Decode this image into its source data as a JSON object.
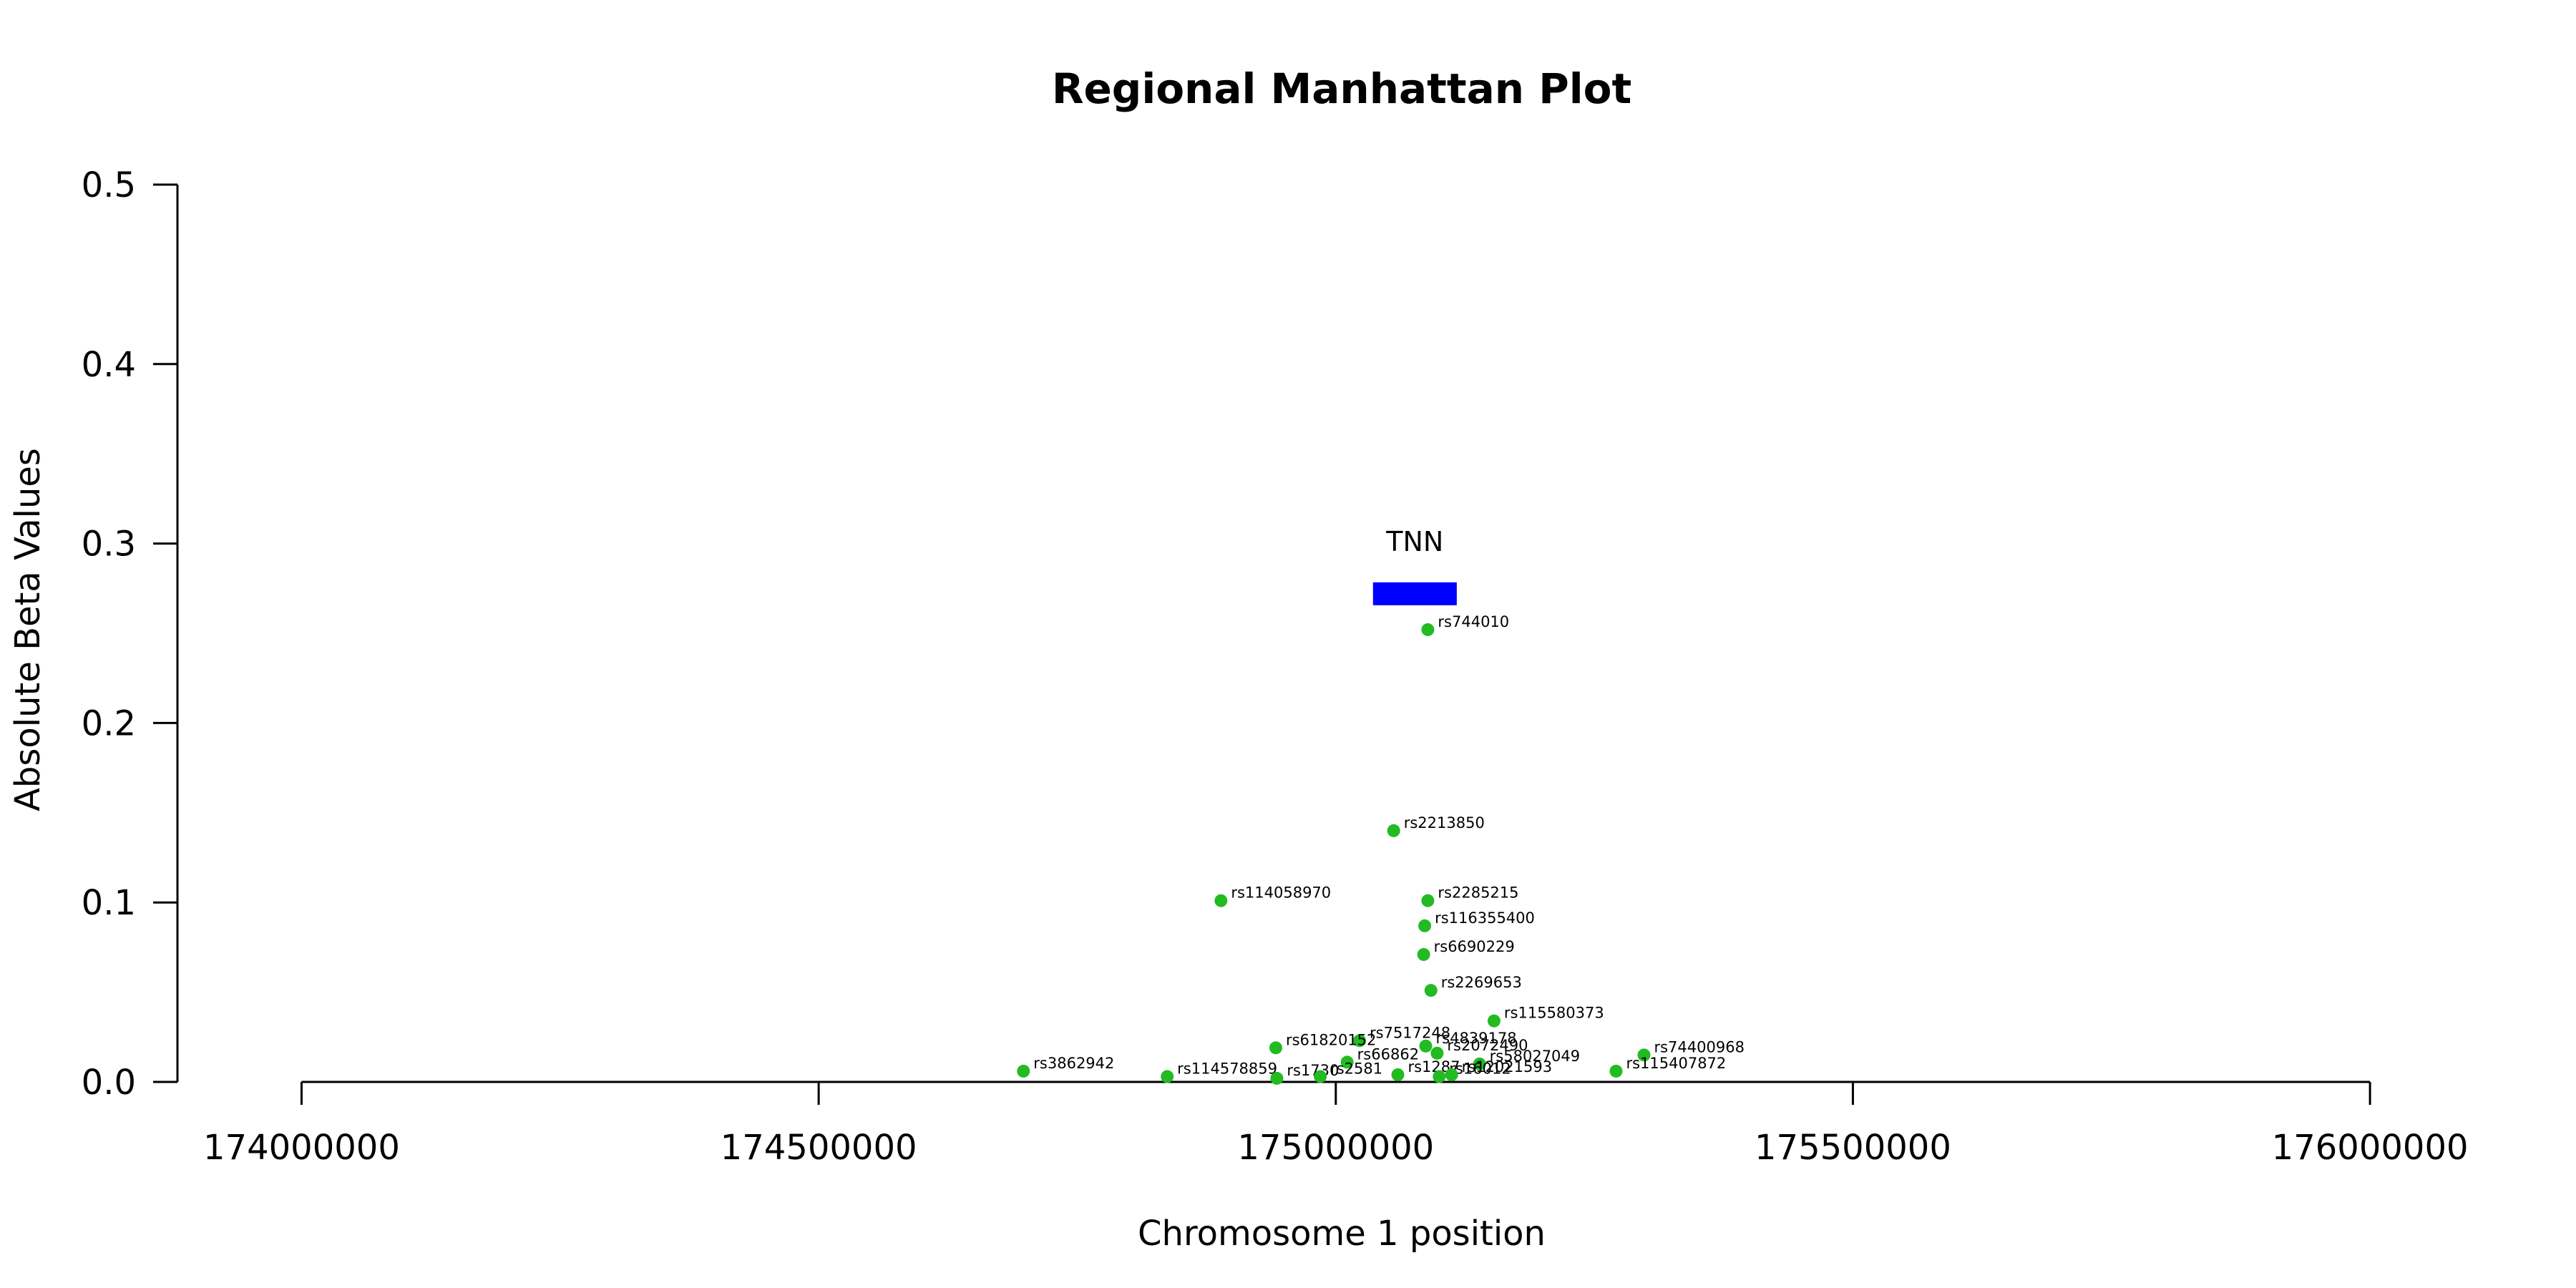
{
  "chart_data": {
    "type": "scatter",
    "title": "Regional Manhattan Plot",
    "xlabel": "Chromosome 1 position",
    "ylabel": "Absolute Beta Values",
    "xlim": [
      173880000,
      176130000
    ],
    "ylim": [
      0,
      0.5
    ],
    "x_ticks": [
      174000000,
      174500000,
      175000000,
      175500000,
      176000000
    ],
    "y_ticks": [
      0.0,
      0.1,
      0.2,
      0.3,
      0.4,
      0.5
    ],
    "x_tick_labels": [
      "174000000",
      "174500000",
      "175000000",
      "175500000",
      "176000000"
    ],
    "y_tick_labels": [
      "0.0",
      "0.1",
      "0.2",
      "0.3",
      "0.4",
      "0.5"
    ],
    "point_color": "#22bb22",
    "grid": false,
    "genes": [
      {
        "name": "TNN",
        "start": 175036000,
        "end": 175117000,
        "y": 0.272,
        "color": "#0000ff"
      }
    ],
    "points": [
      {
        "label": "rs744010",
        "x": 175089000,
        "y": 0.252
      },
      {
        "label": "rs2213850",
        "x": 175056000,
        "y": 0.14
      },
      {
        "label": "rs114058970",
        "x": 174889000,
        "y": 0.101
      },
      {
        "label": "rs2285215",
        "x": 175089000,
        "y": 0.101
      },
      {
        "label": "rs116355400",
        "x": 175086000,
        "y": 0.087
      },
      {
        "label": "rs6690229",
        "x": 175085000,
        "y": 0.071
      },
      {
        "label": "rs2269653",
        "x": 175092000,
        "y": 0.051
      },
      {
        "label": "rs115580373",
        "x": 175153000,
        "y": 0.034
      },
      {
        "label": "rs7517248",
        "x": 175023000,
        "y": 0.023
      },
      {
        "label": "rs61820152",
        "x": 174942000,
        "y": 0.019
      },
      {
        "label": "rs4839178",
        "x": 175087000,
        "y": 0.02
      },
      {
        "label": "rs2072490",
        "x": 175098000,
        "y": 0.016
      },
      {
        "label": "rs74400968",
        "x": 175298000,
        "y": 0.015
      },
      {
        "label": "rs66862",
        "x": 175011000,
        "y": 0.011
      },
      {
        "label": "rs58027049",
        "x": 175139000,
        "y": 0.01
      },
      {
        "label": "rs115407872",
        "x": 175271000,
        "y": 0.006
      },
      {
        "label": "rs3862942",
        "x": 174698000,
        "y": 0.006
      },
      {
        "label": "rs114578859",
        "x": 174837000,
        "y": 0.003
      },
      {
        "label": "rs1730",
        "x": 174943000,
        "y": 0.002
      },
      {
        "label": "rs2581",
        "x": 174985000,
        "y": 0.003
      },
      {
        "label": "rs1287",
        "x": 175060000,
        "y": 0.004
      },
      {
        "label": "rs16012",
        "x": 175100000,
        "y": 0.003
      },
      {
        "label": "rs12021593",
        "x": 175112000,
        "y": 0.004
      }
    ]
  }
}
